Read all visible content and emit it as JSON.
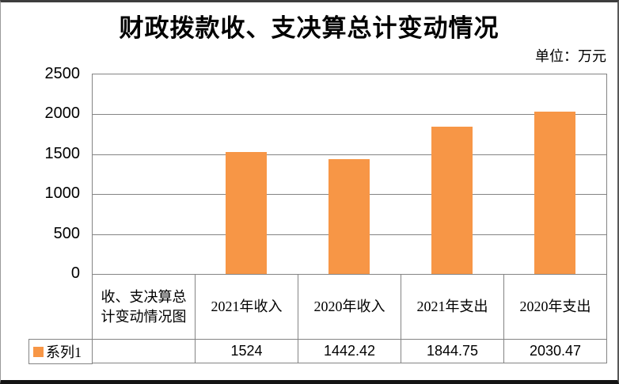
{
  "chart_data": {
    "type": "bar",
    "title": "财政拨款收、支决算总计变动情况",
    "unit_label": "单位：万元",
    "table_stub_header": "收、支决算总计变动情况图",
    "categories": [
      "2021年收入",
      "2020年收入",
      "2021年支出",
      "2020年支出"
    ],
    "series": [
      {
        "name": "系列1",
        "values": [
          1524,
          1442.42,
          1844.75,
          2030.47
        ]
      }
    ],
    "y_ticks": [
      0,
      500,
      1000,
      1500,
      2000,
      2500
    ],
    "ylim": [
      0,
      2500
    ],
    "bar_color": "#F79646",
    "grid_color": "#848484",
    "legend_position": "table-left",
    "grid": true
  }
}
